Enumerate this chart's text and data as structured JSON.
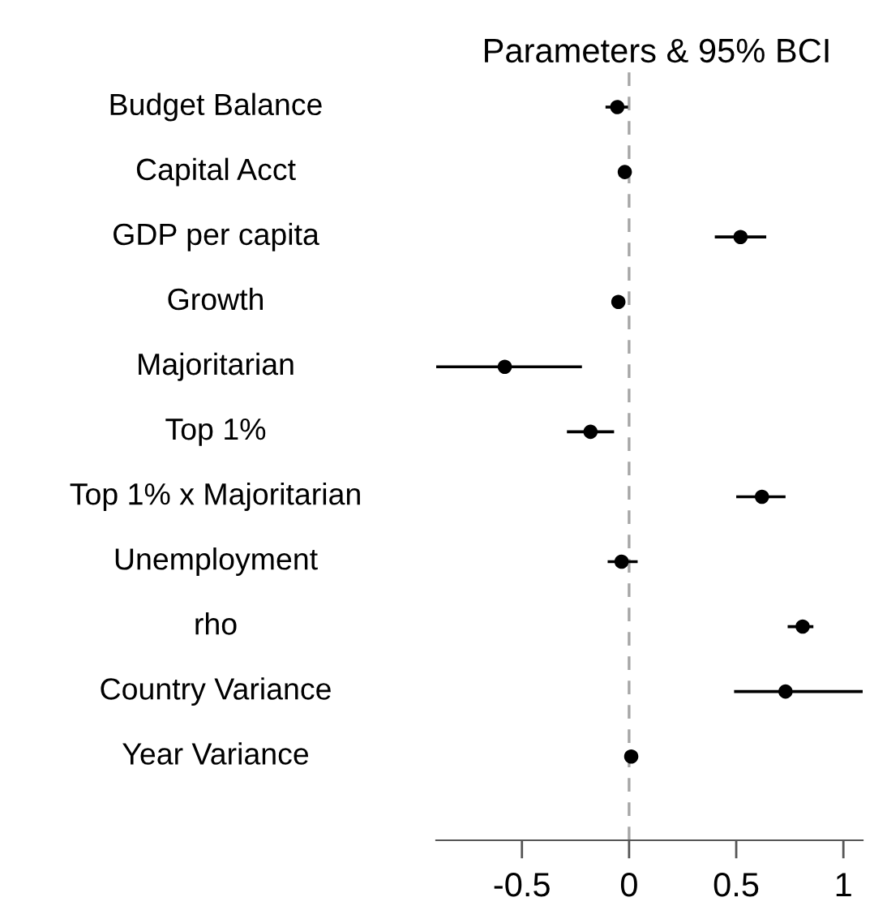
{
  "chart_data": {
    "type": "scatter",
    "orientation": "horizontal",
    "title": "Parameters & 95% BCI",
    "categories": [
      "Budget Balance",
      "Capital Acct",
      "GDP per capita",
      "Growth",
      "Majoritarian",
      "Top 1%",
      "Top 1% x Majoritarian",
      "Unemployment",
      "rho",
      "Country Variance",
      "Year Variance"
    ],
    "series": [
      {
        "color": "#000000",
        "values": [
          -0.055,
          -0.02,
          0.52,
          -0.05,
          -0.58,
          -0.18,
          0.62,
          -0.035,
          0.81,
          0.73,
          0.01
        ],
        "errors": [
          [
            -0.11,
            -0.005
          ],
          null,
          [
            0.4,
            0.64
          ],
          null,
          [
            -0.9,
            -0.22
          ],
          [
            -0.29,
            -0.07
          ],
          [
            0.5,
            0.73
          ],
          [
            -0.1,
            0.04
          ],
          [
            0.74,
            0.86
          ],
          [
            0.49,
            1.09
          ],
          null
        ]
      }
    ],
    "xlim": [
      -0.9,
      1.09
    ],
    "xticks": [
      -0.5,
      0,
      0.5,
      1
    ],
    "marker": "circle",
    "ref_lines": [
      {
        "axis": "x",
        "value": 0,
        "color": "#a6a6a6",
        "line_style": "dashed"
      }
    ],
    "grid": false
  }
}
